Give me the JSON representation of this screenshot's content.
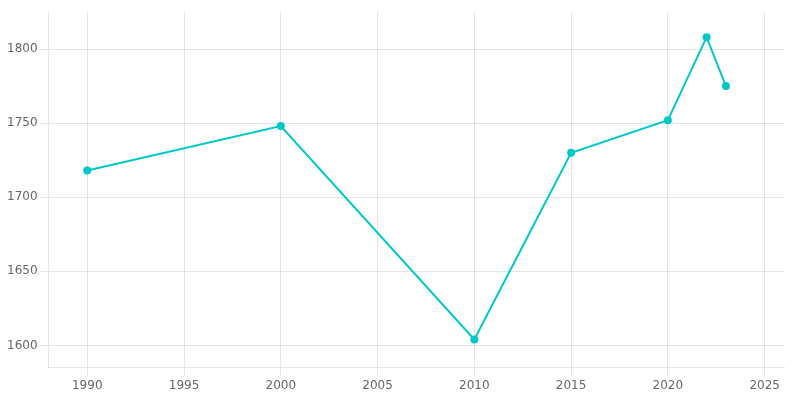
{
  "chart_data": {
    "type": "line",
    "x": [
      1990,
      2000,
      2010,
      2015,
      2020,
      2022,
      2023
    ],
    "values": [
      1718,
      1748,
      1604,
      1730,
      1752,
      1808,
      1775
    ],
    "color": "#00C8C8",
    "marker": "circle",
    "xlim": [
      1988,
      2026
    ],
    "ylim": [
      1585,
      1825
    ],
    "xticks": [
      1990,
      1995,
      2000,
      2005,
      2010,
      2015,
      2020,
      2025
    ],
    "yticks": [
      1600,
      1650,
      1700,
      1750,
      1800
    ],
    "grid": true
  }
}
